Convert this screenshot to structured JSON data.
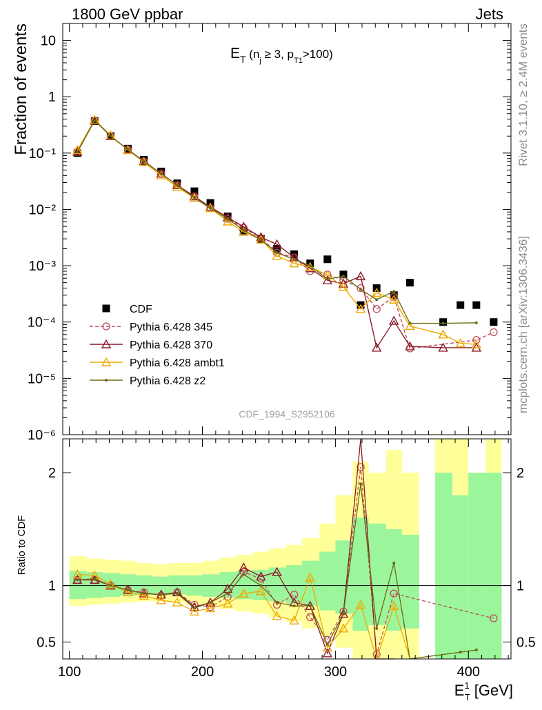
{
  "header": {
    "left": "1800 GeV ppbar",
    "right": "Jets",
    "plot_title": "E",
    "plot_title_sub": "T",
    "plot_title_rest_1": " (n",
    "plot_title_rest_sub1": "j",
    "plot_title_rest_2": " ≥ 3, p",
    "plot_title_rest_sub2": "T1",
    "plot_title_rest_3": ">100)",
    "watermark": "CDF_1994_S2952106"
  },
  "side": {
    "rivet": "Rivet 3.1.10, ≥ 2.4M events",
    "mcplots": "mcplots.cern.ch [arXiv:1306.3436]"
  },
  "axes": {
    "ylabel_top": "Fraction of events",
    "ylabel_ratio": "Ratio to CDF",
    "xlabel_main": "E",
    "xlabel_sup": "1",
    "xlabel_sub": "T",
    "xlabel_unit": " [GeV]"
  },
  "legend": [
    {
      "label": "CDF",
      "color": "#000000",
      "marker": "square"
    },
    {
      "label": "Pythia 6.428 345",
      "color": "#c04a5e",
      "marker": "open-circle"
    },
    {
      "label": "Pythia 6.428 370",
      "color": "#8b1a2a",
      "marker": "open-triangle"
    },
    {
      "label": "Pythia 6.428 ambt1",
      "color": "#f0a800",
      "marker": "open-triangle"
    },
    {
      "label": "Pythia 6.428 z2",
      "color": "#6b6b10",
      "marker": "dot"
    }
  ],
  "chart_data": {
    "type": "line",
    "x_range": [
      95,
      432
    ],
    "y_range_main": [
      1e-06,
      20
    ],
    "y_scale_main": "log",
    "y_range_ratio": [
      0.35,
      2.3
    ],
    "x_ticks": [
      100,
      200,
      300,
      400
    ],
    "y_ticks_main": [
      "10",
      "1",
      "10⁻¹",
      "10⁻²",
      "10⁻³",
      "10⁻⁴",
      "10⁻⁵",
      "10⁻⁶"
    ],
    "y_ticks_ratio": [
      "0.5",
      "1",
      "2"
    ],
    "x": [
      106,
      119,
      131,
      144,
      156,
      169,
      181,
      194,
      206,
      219,
      231,
      244,
      256,
      269,
      281,
      294,
      306,
      319,
      331,
      344,
      356,
      369,
      381,
      394,
      406,
      419
    ],
    "series": [
      {
        "name": "CDF",
        "values": [
          0.1,
          0.37,
          0.2,
          0.12,
          0.076,
          0.047,
          0.029,
          0.021,
          0.013,
          0.0075,
          0.0042,
          0.003,
          0.002,
          0.0016,
          0.0011,
          0.0013,
          0.0007,
          0.0002,
          0.0004,
          0.0003,
          0.0005,
          null,
          0.0001,
          0.0002,
          0.0002,
          0.0001
        ]
      },
      {
        "name": "Pythia 6.428 345",
        "values": [
          0.105,
          0.38,
          0.2,
          0.115,
          0.071,
          0.043,
          0.027,
          0.017,
          0.0105,
          0.0068,
          0.0047,
          0.0031,
          0.0017,
          0.0014,
          0.0008,
          0.0007,
          0.00055,
          0.0004,
          0.00017,
          0.00028,
          3.4e-05,
          null,
          null,
          null,
          4.8e-05,
          6.6e-05
        ]
      },
      {
        "name": "Pythia 6.428 370",
        "values": [
          0.105,
          0.38,
          0.2,
          0.115,
          0.072,
          0.043,
          0.027,
          0.017,
          0.011,
          0.0072,
          0.0049,
          0.0032,
          0.0024,
          0.0014,
          0.0009,
          0.00055,
          0.00048,
          0.00065,
          3.5e-05,
          0.000105,
          3.7e-05,
          null,
          3.5e-05,
          null,
          3.5e-05,
          null
        ]
      },
      {
        "name": "Pythia 6.428 ambt1",
        "values": [
          0.113,
          0.39,
          0.205,
          0.113,
          0.069,
          0.04,
          0.025,
          0.016,
          0.0105,
          0.0061,
          0.004,
          0.0029,
          0.0015,
          0.0011,
          0.00095,
          0.00068,
          0.00042,
          0.00017,
          0.00033,
          0.00025,
          8.5e-05,
          null,
          6e-05,
          4.2e-05,
          4e-05,
          null
        ]
      },
      {
        "name": "Pythia 6.428 z2",
        "values": [
          0.105,
          0.38,
          0.2,
          0.115,
          0.071,
          0.043,
          0.027,
          0.016,
          0.0105,
          0.0068,
          0.0043,
          0.0029,
          0.0017,
          0.0013,
          0.001,
          0.00058,
          0.00065,
          0.00038,
          0.00025,
          0.00035,
          9.5e-05,
          null,
          9.5e-05,
          null,
          9.7e-05,
          null
        ]
      }
    ],
    "ratio_series": [
      {
        "name": "Pythia 6.428 345",
        "values": [
          1.05,
          1.05,
          1.0,
          0.96,
          0.94,
          0.91,
          0.94,
          0.83,
          0.81,
          0.9,
          1.12,
          1.06,
          0.83,
          0.92,
          0.72,
          0.52,
          0.77,
          2.05,
          0.39,
          0.93,
          null,
          null,
          null,
          null,
          null,
          0.71
        ]
      },
      {
        "name": "Pythia 6.428 370",
        "values": [
          1.05,
          1.05,
          1.0,
          0.96,
          0.93,
          0.92,
          0.94,
          0.81,
          0.85,
          0.97,
          1.16,
          1.08,
          1.12,
          0.85,
          0.82,
          0.4,
          0.75,
          2.4,
          0.15,
          0.3,
          null,
          null,
          null,
          null,
          null,
          null
        ]
      },
      {
        "name": "Pythia 6.428 ambt1",
        "values": [
          1.1,
          1.09,
          1.01,
          0.94,
          0.91,
          0.87,
          0.85,
          0.77,
          0.8,
          0.84,
          0.93,
          0.95,
          0.73,
          0.69,
          1.07,
          0.45,
          0.62,
          0.83,
          0.3,
          0.82,
          0.2,
          null,
          null,
          null,
          null,
          null
        ]
      },
      {
        "name": "Pythia 6.428 z2",
        "values": [
          1.05,
          1.06,
          1.0,
          0.96,
          0.93,
          0.92,
          0.93,
          0.8,
          0.85,
          0.93,
          1.1,
          1.0,
          0.85,
          0.82,
          0.82,
          0.48,
          0.75,
          1.9,
          0.62,
          1.2,
          0.2,
          null,
          null,
          0.41,
          0.43,
          null
        ]
      }
    ],
    "ratio_bands": {
      "inner": [
        [
          100,
          113,
          0.88,
          1.13
        ],
        [
          113,
          125,
          0.89,
          1.12
        ],
        [
          125,
          138,
          0.9,
          1.11
        ],
        [
          138,
          150,
          0.91,
          1.1
        ],
        [
          150,
          163,
          0.92,
          1.09
        ],
        [
          163,
          175,
          0.92,
          1.08
        ],
        [
          175,
          188,
          0.92,
          1.09
        ],
        [
          188,
          200,
          0.91,
          1.09
        ],
        [
          200,
          213,
          0.9,
          1.1
        ],
        [
          213,
          225,
          0.89,
          1.12
        ],
        [
          225,
          238,
          0.88,
          1.13
        ],
        [
          238,
          250,
          0.87,
          1.14
        ],
        [
          250,
          263,
          0.86,
          1.16
        ],
        [
          263,
          275,
          0.84,
          1.18
        ],
        [
          275,
          288,
          0.82,
          1.22
        ],
        [
          288,
          300,
          0.78,
          1.3
        ],
        [
          300,
          313,
          0.75,
          1.4
        ],
        [
          313,
          325,
          0.6,
          1.6
        ],
        [
          325,
          338,
          0.65,
          1.55
        ],
        [
          338,
          350,
          0.6,
          1.5
        ],
        [
          350,
          363,
          0.62,
          1.45
        ],
        [
          375,
          388,
          0.35,
          2.0
        ],
        [
          388,
          400,
          0.35,
          1.8
        ],
        [
          400,
          413,
          0.35,
          2.0
        ],
        [
          413,
          425,
          0.35,
          2.0
        ]
      ],
      "outer": [
        [
          100,
          113,
          0.82,
          1.26
        ],
        [
          113,
          125,
          0.83,
          1.24
        ],
        [
          125,
          138,
          0.84,
          1.23
        ],
        [
          138,
          150,
          0.85,
          1.22
        ],
        [
          150,
          163,
          0.86,
          1.2
        ],
        [
          163,
          175,
          0.86,
          1.19
        ],
        [
          175,
          188,
          0.85,
          1.2
        ],
        [
          188,
          200,
          0.83,
          1.2
        ],
        [
          200,
          213,
          0.82,
          1.22
        ],
        [
          213,
          225,
          0.79,
          1.25
        ],
        [
          225,
          238,
          0.77,
          1.27
        ],
        [
          238,
          250,
          0.75,
          1.3
        ],
        [
          250,
          263,
          0.72,
          1.33
        ],
        [
          263,
          275,
          0.68,
          1.36
        ],
        [
          275,
          288,
          0.62,
          1.42
        ],
        [
          288,
          300,
          0.55,
          1.55
        ],
        [
          300,
          313,
          0.45,
          1.8
        ],
        [
          313,
          325,
          0.35,
          2.1
        ],
        [
          325,
          338,
          0.35,
          2.0
        ],
        [
          338,
          350,
          0.35,
          2.2
        ],
        [
          350,
          363,
          0.35,
          2.0
        ],
        [
          375,
          388,
          0.35,
          2.3
        ],
        [
          388,
          400,
          0.35,
          2.3
        ],
        [
          400,
          413,
          0.35,
          2.0
        ],
        [
          413,
          425,
          0.35,
          2.3
        ]
      ]
    },
    "band_colors": {
      "inner": "#9bf59b",
      "outer": "#ffff99"
    },
    "title": "E_T (n_j ≥ 3, p_T1>100)",
    "xlabel": "E^1_T [GeV]",
    "ylabel": "Fraction of events",
    "legend_placement": "lower-left"
  }
}
